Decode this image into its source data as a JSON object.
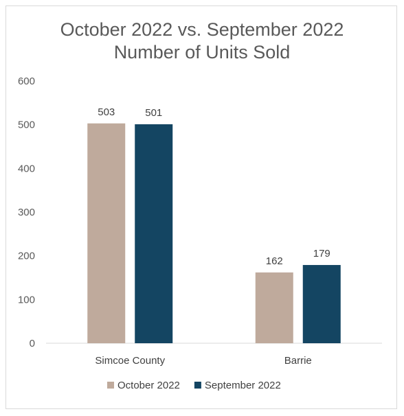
{
  "chart_data": {
    "type": "bar",
    "title": [
      "October 2022 vs. September 2022",
      "Number of Units Sold"
    ],
    "categories": [
      "Simcoe County",
      "Barrie"
    ],
    "series": [
      {
        "name": "October 2022",
        "color": "#bfaa9c",
        "values": [
          503,
          162
        ]
      },
      {
        "name": "September 2022",
        "color": "#144562",
        "values": [
          501,
          179
        ]
      }
    ],
    "ylim": [
      0,
      600
    ],
    "yticks": [
      0,
      100,
      200,
      300,
      400,
      500,
      600
    ],
    "grid": false,
    "legend": "bottom",
    "data_labels": true
  }
}
